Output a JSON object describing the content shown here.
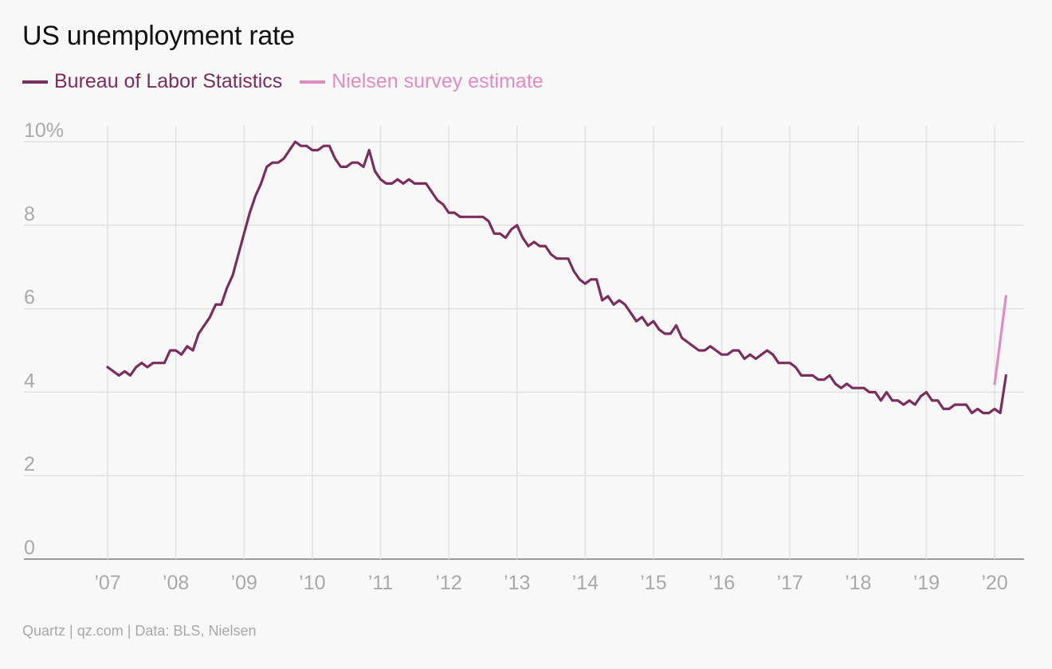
{
  "chart_data": {
    "type": "line",
    "title": "US unemployment rate",
    "xlabel": "",
    "ylabel": "",
    "ylim": [
      0,
      10
    ],
    "xlim": [
      2007,
      2020.25
    ],
    "y_ticks": [
      0,
      2,
      4,
      6,
      8,
      10
    ],
    "y_tick_labels": [
      "0",
      "2",
      "4",
      "6",
      "8",
      "10%"
    ],
    "x_ticks": [
      2007,
      2008,
      2009,
      2010,
      2011,
      2012,
      2013,
      2014,
      2015,
      2016,
      2017,
      2018,
      2019,
      2020
    ],
    "x_tick_labels": [
      "’07",
      "’08",
      "’09",
      "’10",
      "’11",
      "’12",
      "’13",
      "’14",
      "’15",
      "’16",
      "’17",
      "’18",
      "’19",
      "’20"
    ],
    "grid": true,
    "legend_position": "top-left",
    "series": [
      {
        "name": "Bureau of Labor Statistics",
        "color": "#7b2d5f",
        "start": "2007-01",
        "frequency": "monthly",
        "values": [
          4.6,
          4.5,
          4.4,
          4.5,
          4.4,
          4.6,
          4.7,
          4.6,
          4.7,
          4.7,
          4.7,
          5.0,
          5.0,
          4.9,
          5.1,
          5.0,
          5.4,
          5.6,
          5.8,
          6.1,
          6.1,
          6.5,
          6.8,
          7.3,
          7.8,
          8.3,
          8.7,
          9.0,
          9.4,
          9.5,
          9.5,
          9.6,
          9.8,
          10.0,
          9.9,
          9.9,
          9.8,
          9.8,
          9.9,
          9.9,
          9.6,
          9.4,
          9.4,
          9.5,
          9.5,
          9.4,
          9.8,
          9.3,
          9.1,
          9.0,
          9.0,
          9.1,
          9.0,
          9.1,
          9.0,
          9.0,
          9.0,
          8.8,
          8.6,
          8.5,
          8.3,
          8.3,
          8.2,
          8.2,
          8.2,
          8.2,
          8.2,
          8.1,
          7.8,
          7.8,
          7.7,
          7.9,
          8.0,
          7.7,
          7.5,
          7.6,
          7.5,
          7.5,
          7.3,
          7.2,
          7.2,
          7.2,
          6.9,
          6.7,
          6.6,
          6.7,
          6.7,
          6.2,
          6.3,
          6.1,
          6.2,
          6.1,
          5.9,
          5.7,
          5.8,
          5.6,
          5.7,
          5.5,
          5.4,
          5.4,
          5.6,
          5.3,
          5.2,
          5.1,
          5.0,
          5.0,
          5.1,
          5.0,
          4.9,
          4.9,
          5.0,
          5.0,
          4.8,
          4.9,
          4.8,
          4.9,
          5.0,
          4.9,
          4.7,
          4.7,
          4.7,
          4.6,
          4.4,
          4.4,
          4.4,
          4.3,
          4.3,
          4.4,
          4.2,
          4.1,
          4.2,
          4.1,
          4.1,
          4.1,
          4.0,
          4.0,
          3.8,
          4.0,
          3.8,
          3.8,
          3.7,
          3.8,
          3.7,
          3.9,
          4.0,
          3.8,
          3.8,
          3.6,
          3.6,
          3.7,
          3.7,
          3.7,
          3.5,
          3.6,
          3.5,
          3.5,
          3.6,
          3.5,
          4.4
        ]
      },
      {
        "name": "Nielsen survey estimate",
        "color": "#e08bc3",
        "points": [
          {
            "x": "2020-01",
            "y": 4.2
          },
          {
            "x": "2020-03",
            "y": 6.3
          }
        ]
      }
    ],
    "source": "Quartz | qz.com | Data: BLS, Nielsen"
  }
}
